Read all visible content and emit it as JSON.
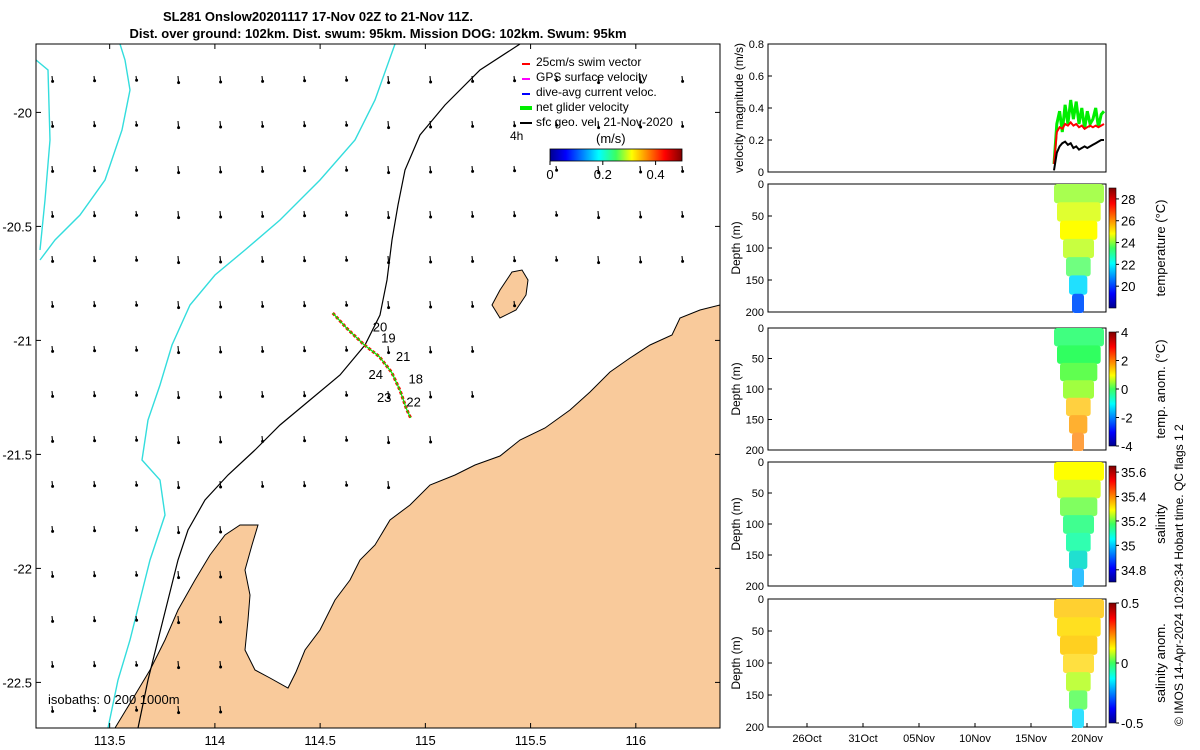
{
  "title": {
    "line1": "SL281 Onslow20201117 17-Nov 02Z to 21-Nov 11Z.",
    "line2": "Dist. over ground: 102km. Dist. swum: 95km. Mission DOG: 102km. Swum: 95km"
  },
  "footer_text": "© IMOS 14-Apr-2024 10:29:34 Hobart time. QC flags 1  2",
  "colors": {
    "land": "#f9ca9b",
    "isobath_200": "#000000",
    "isobath_1000": "#33dddd",
    "swim_vector": "#ff0000",
    "gps_velocity": "#ff00ff",
    "current_velocity": "#0000ff",
    "net_velocity": "#00ee00",
    "geo_velocity": "#000000"
  },
  "chart_data": [
    {
      "type": "map",
      "xlim": [
        113.15,
        116.4
      ],
      "ylim": [
        -22.7,
        -19.7
      ],
      "xticks": [
        113.5,
        114,
        114.5,
        115,
        115.5,
        116
      ],
      "xtick_labels": [
        "113.5",
        "114",
        "114.5",
        "115",
        "115.5",
        "116"
      ],
      "yticks": [
        -20,
        -20.5,
        -21,
        -21.5,
        -22,
        -22.5
      ],
      "ytick_labels": [
        "-20",
        "-20.5",
        "-21",
        "-21.5",
        "-22",
        "-22.5"
      ],
      "isobaths_label": "isobaths: 0   200  1000m",
      "legend": [
        {
          "label": "25cm/s swim vector",
          "color": "#ff0000"
        },
        {
          "label": "GPS surface velocity",
          "color": "#ff00ff"
        },
        {
          "label": "dive-avg current veloc.",
          "color": "#0000ff"
        },
        {
          "label": "net glider velocity",
          "color": "#00ee00"
        },
        {
          "label": "sfc geo. vel. 21-Nov-2020",
          "color": "#000000"
        }
      ],
      "time_label": "4h",
      "colorbar": {
        "label": "(m/s)",
        "ticks": [
          0,
          0.2,
          0.4
        ],
        "tick_labels": [
          "0",
          "0.2",
          "0.4"
        ],
        "range": [
          0,
          0.5
        ]
      },
      "track_day_labels": [
        {
          "text": "20",
          "lon": 114.75,
          "lat": -20.96
        },
        {
          "text": "19",
          "lon": 114.79,
          "lat": -21.01
        },
        {
          "text": "21",
          "lon": 114.86,
          "lat": -21.09
        },
        {
          "text": "24",
          "lon": 114.73,
          "lat": -21.17
        },
        {
          "text": "18",
          "lon": 114.92,
          "lat": -21.19
        },
        {
          "text": "23",
          "lon": 114.77,
          "lat": -21.27
        },
        {
          "text": "22",
          "lon": 114.91,
          "lat": -21.29
        }
      ],
      "glider_track": [
        {
          "lon": 114.56,
          "lat": -20.88
        },
        {
          "lon": 114.63,
          "lat": -20.95
        },
        {
          "lon": 114.71,
          "lat": -21.02
        },
        {
          "lon": 114.78,
          "lat": -21.07
        },
        {
          "lon": 114.84,
          "lat": -21.14
        },
        {
          "lon": 114.88,
          "lat": -21.22
        },
        {
          "lon": 114.91,
          "lat": -21.3
        },
        {
          "lon": 114.93,
          "lat": -21.34
        }
      ]
    },
    {
      "type": "line",
      "ylabel": "velocity magnitude (m/s)",
      "ylim": [
        0,
        0.8
      ],
      "yticks": [
        0,
        0.2,
        0.4,
        0.6,
        0.8
      ],
      "ytick_labels": [
        "0",
        "0.2",
        "0.4",
        "0.6",
        "0.8"
      ],
      "series": [
        {
          "color": "#00ee00",
          "values": [
            0.05,
            0.3,
            0.38,
            0.25,
            0.42,
            0.3,
            0.45,
            0.33,
            0.44,
            0.3,
            0.4,
            0.27,
            0.38,
            0.3,
            0.33,
            0.4,
            0.28,
            0.36,
            0.38
          ]
        },
        {
          "color": "#ff0000",
          "values": [
            0.05,
            0.25,
            0.28,
            0.27,
            0.3,
            0.29,
            0.31,
            0.29,
            0.3,
            0.28,
            0.29,
            0.27,
            0.28,
            0.29,
            0.28,
            0.29,
            0.28,
            0.29,
            0.3
          ]
        },
        {
          "color": "#000000",
          "values": [
            0.01,
            0.12,
            0.16,
            0.18,
            0.19,
            0.17,
            0.18,
            0.15,
            0.16,
            0.14,
            0.15,
            0.16,
            0.15,
            0.16,
            0.17,
            0.18,
            0.19,
            0.2,
            0.2
          ]
        }
      ]
    },
    {
      "type": "heatmap",
      "ylabel": "Depth (m)",
      "ylim": [
        0,
        200
      ],
      "yticks": [
        0,
        50,
        100,
        150,
        200
      ],
      "ytick_labels": [
        "0",
        "50",
        "100",
        "150",
        "200"
      ],
      "colorbar_label": "temperature (°C)",
      "colorbar_range": [
        18,
        29
      ],
      "colorbar_ticks": [
        20,
        22,
        24,
        26,
        28
      ],
      "colorbar_tick_labels": [
        "20",
        "22",
        "24",
        "26",
        "28"
      ]
    },
    {
      "type": "heatmap",
      "ylabel": "Depth (m)",
      "ylim": [
        0,
        200
      ],
      "yticks": [
        0,
        50,
        100,
        150,
        200
      ],
      "ytick_labels": [
        "0",
        "50",
        "100",
        "150",
        "200"
      ],
      "colorbar_label": "temp. anom. (°C)",
      "colorbar_range": [
        -4,
        4
      ],
      "colorbar_ticks": [
        -4,
        -2,
        0,
        2,
        4
      ],
      "colorbar_tick_labels": [
        "-4",
        "-2",
        "0",
        "2",
        "4"
      ]
    },
    {
      "type": "heatmap",
      "ylabel": "Depth (m)",
      "ylim": [
        0,
        200
      ],
      "yticks": [
        0,
        50,
        100,
        150,
        200
      ],
      "ytick_labels": [
        "0",
        "50",
        "100",
        "150",
        "200"
      ],
      "colorbar_label": "salinity",
      "colorbar_range": [
        34.7,
        35.65
      ],
      "colorbar_ticks": [
        34.8,
        35,
        35.2,
        35.4,
        35.6
      ],
      "colorbar_tick_labels": [
        "34.8",
        "35",
        "35.2",
        "35.4",
        "35.6"
      ]
    },
    {
      "type": "heatmap",
      "ylabel": "Depth (m)",
      "ylim": [
        0,
        200
      ],
      "yticks": [
        0,
        50,
        100,
        150,
        200
      ],
      "ytick_labels": [
        "0",
        "50",
        "100",
        "150",
        "200"
      ],
      "colorbar_label": "salinity anom.",
      "colorbar_range": [
        -0.5,
        0.5
      ],
      "colorbar_ticks": [
        -0.5,
        0,
        0.5
      ],
      "colorbar_tick_labels": [
        "-0.5",
        "0",
        "0.5"
      ],
      "xtick_labels": [
        "26Oct",
        "31Oct",
        "05Nov",
        "10Nov",
        "15Nov",
        "20Nov"
      ]
    }
  ]
}
